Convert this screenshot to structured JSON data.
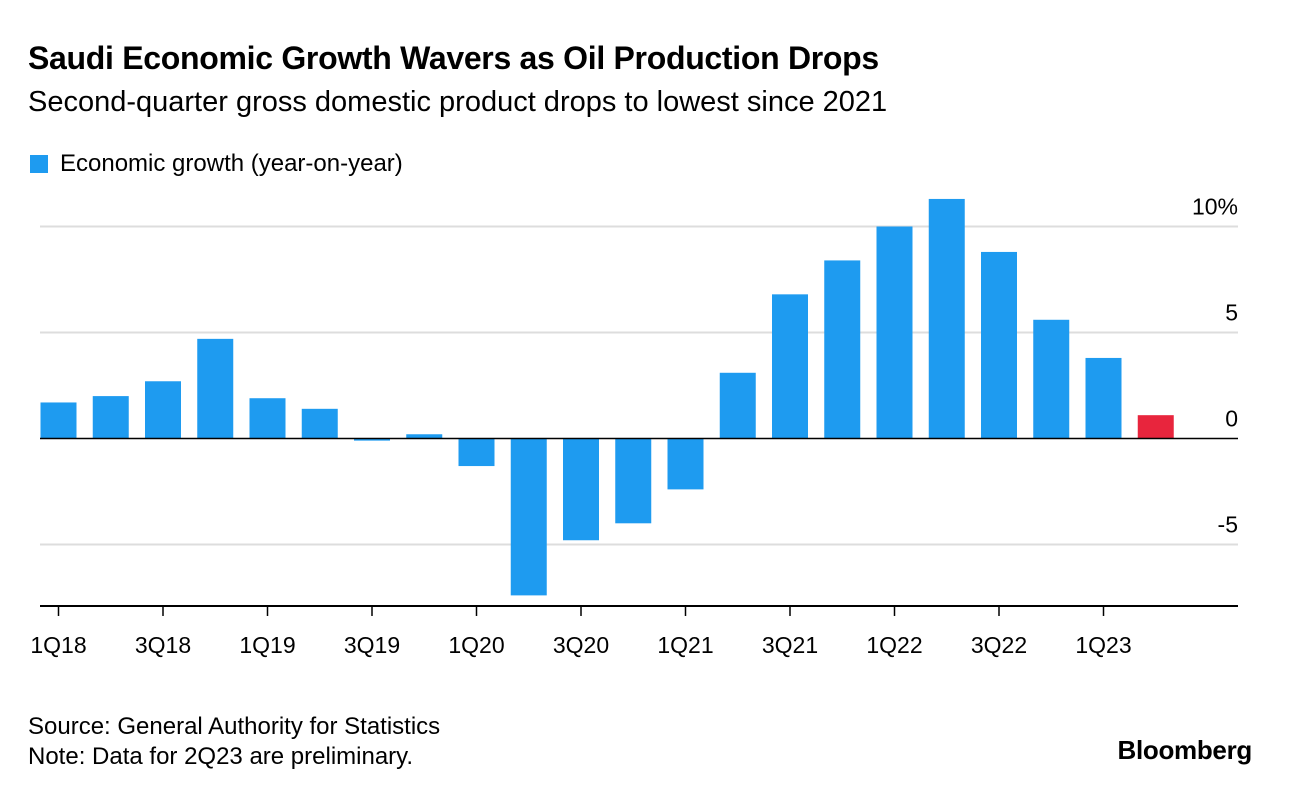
{
  "title": "Saudi Economic Growth Wavers as Oil Production Drops",
  "subtitle": "Second-quarter gross domestic product drops to lowest since 2021",
  "legend": {
    "label": "Economic growth (year-on-year)"
  },
  "colors": {
    "bar": "#1e9bf0",
    "highlight": "#e8253d",
    "grid": "#dddddd",
    "axis": "#000000"
  },
  "chart_data": {
    "type": "bar",
    "categories": [
      "1Q18",
      "2Q18",
      "3Q18",
      "4Q18",
      "1Q19",
      "2Q19",
      "3Q19",
      "4Q19",
      "1Q20",
      "2Q20",
      "3Q20",
      "4Q20",
      "1Q21",
      "2Q21",
      "3Q21",
      "4Q21",
      "1Q22",
      "2Q22",
      "3Q22",
      "4Q22",
      "1Q23",
      "2Q23"
    ],
    "series": [
      {
        "name": "Economic growth (year-on-year)",
        "values": [
          1.7,
          2.0,
          2.7,
          4.7,
          1.9,
          1.4,
          -0.1,
          0.2,
          -1.3,
          -7.4,
          -4.8,
          -4.0,
          -2.4,
          3.1,
          6.8,
          8.4,
          10.0,
          11.3,
          8.8,
          5.6,
          3.8,
          1.1
        ]
      }
    ],
    "highlight_category": "2Q23",
    "tick_labels": [
      "1Q18",
      "3Q18",
      "1Q19",
      "3Q19",
      "1Q20",
      "3Q20",
      "1Q21",
      "3Q21",
      "1Q22",
      "3Q22",
      "1Q23"
    ],
    "y_ticks": [
      {
        "value": 10,
        "label": "10%"
      },
      {
        "value": 5,
        "label": "5"
      },
      {
        "value": 0,
        "label": "0"
      },
      {
        "value": -5,
        "label": "-5"
      }
    ],
    "ylim": [
      -7.9,
      11.5
    ],
    "y_axis_position": "right",
    "grid": true
  },
  "footer": {
    "source": "Source: General Authority for Statistics",
    "note": "Note: Data for 2Q23 are preliminary."
  },
  "brand": "Bloomberg"
}
